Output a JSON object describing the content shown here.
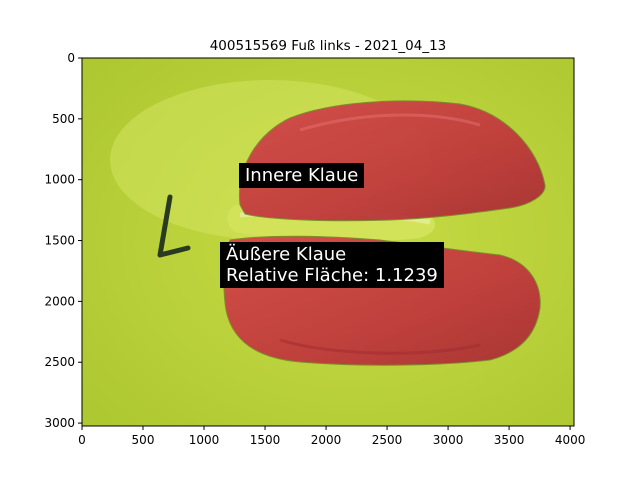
{
  "figure": {
    "title": "400515569 Fuß links - 2021_04_13",
    "x_ticks": [
      0,
      500,
      1000,
      1500,
      2000,
      2500,
      3000,
      3500,
      4000
    ],
    "y_ticks": [
      0,
      500,
      1000,
      1500,
      2000,
      2500,
      3000
    ],
    "x_range": [
      0,
      4032
    ],
    "y_range": [
      3024,
      0
    ]
  },
  "annotations": {
    "inner": "Innere Klaue",
    "outer_line1": "Äußere Klaue",
    "outer_line2": "Relative Fläche: 1.1239"
  },
  "colors": {
    "background": "#bcd43a",
    "claw_overlay": "#c83a3e",
    "gap": "#d2e35a"
  }
}
